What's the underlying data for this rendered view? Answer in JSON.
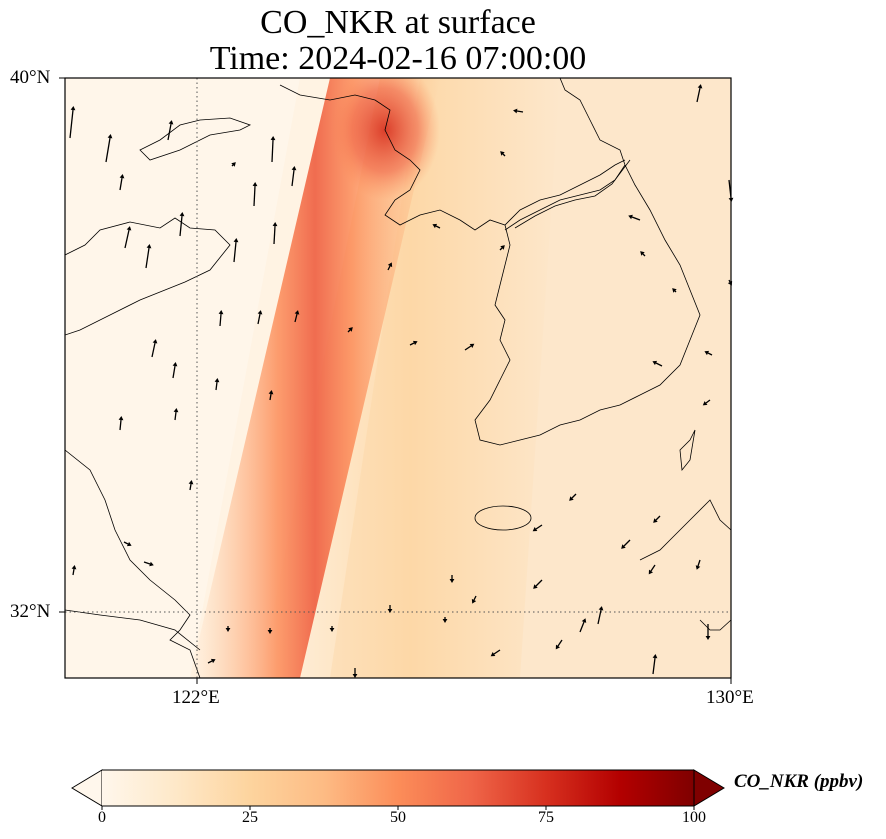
{
  "title": {
    "line1": "CO_NKR at surface",
    "line2": "Time: 2024-02-16 07:00:00"
  },
  "axes": {
    "lon_ticks": [
      "122°E",
      "130°E"
    ],
    "lat_ticks": [
      "40°N",
      "32°N"
    ],
    "lon_range": [
      120,
      130
    ],
    "lat_range": [
      31,
      40
    ]
  },
  "colorbar": {
    "label": "CO_NKR (ppbv)",
    "ticks": [
      "0",
      "25",
      "50",
      "75",
      "100"
    ],
    "range": [
      0,
      100
    ],
    "extend": "both",
    "colormap": "OrRd",
    "colors": [
      "#fff7ec",
      "#fee8c8",
      "#fdd49e",
      "#fdbb84",
      "#fc8d59",
      "#ef6548",
      "#d7301f",
      "#b30000",
      "#7f0000"
    ]
  },
  "plume": {
    "description_none": "",
    "peak_value": 60
  }
}
